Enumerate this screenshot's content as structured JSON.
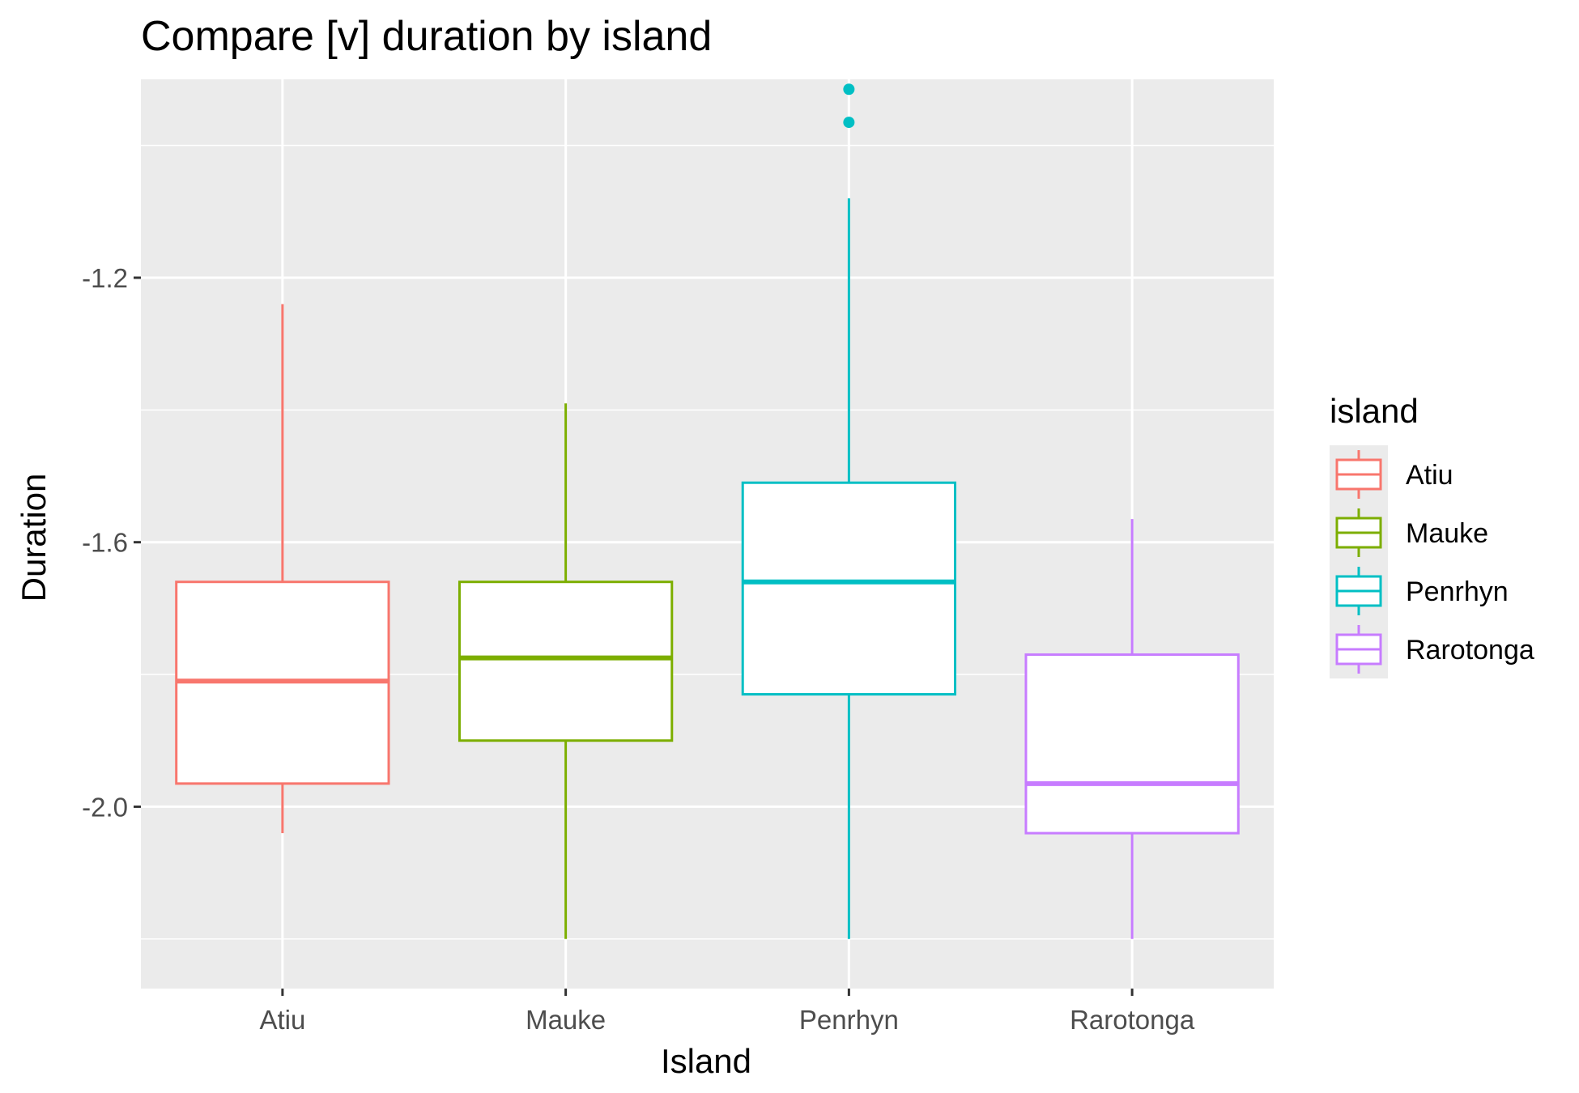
{
  "chart_data": {
    "type": "boxplot",
    "title": "Compare [v] duration by island",
    "xlabel": "Island",
    "ylabel": "Duration",
    "categories": [
      "Atiu",
      "Mauke",
      "Penrhyn",
      "Rarotonga"
    ],
    "ylim": [
      -2.275,
      -0.9
    ],
    "yticks": [
      -2.0,
      -1.6,
      -1.2
    ],
    "ytick_labels": [
      "-2.0",
      "-1.6",
      "-1.2"
    ],
    "grid": true,
    "legend": {
      "title": "island",
      "position": "right",
      "entries": [
        "Atiu",
        "Mauke",
        "Penrhyn",
        "Rarotonga"
      ]
    },
    "colors": {
      "Atiu": "#F8766D",
      "Mauke": "#7CAE00",
      "Penrhyn": "#00BFC4",
      "Rarotonga": "#C77CFF",
      "panel": "#EBEBEB",
      "grid": "#FFFFFF"
    },
    "series": [
      {
        "name": "Atiu",
        "whisker_low": -2.04,
        "q1": -1.965,
        "median": -1.81,
        "q3": -1.66,
        "whisker_high": -1.24,
        "outliers": []
      },
      {
        "name": "Mauke",
        "whisker_low": -2.2,
        "q1": -1.9,
        "median": -1.775,
        "q3": -1.66,
        "whisker_high": -1.39,
        "outliers": []
      },
      {
        "name": "Penrhyn",
        "whisker_low": -2.2,
        "q1": -1.83,
        "median": -1.66,
        "q3": -1.51,
        "whisker_high": -1.08,
        "outliers": [
          -0.915,
          -0.965
        ]
      },
      {
        "name": "Rarotonga",
        "whisker_low": -2.2,
        "q1": -2.04,
        "median": -1.965,
        "q3": -1.77,
        "whisker_high": -1.565,
        "outliers": []
      }
    ]
  }
}
